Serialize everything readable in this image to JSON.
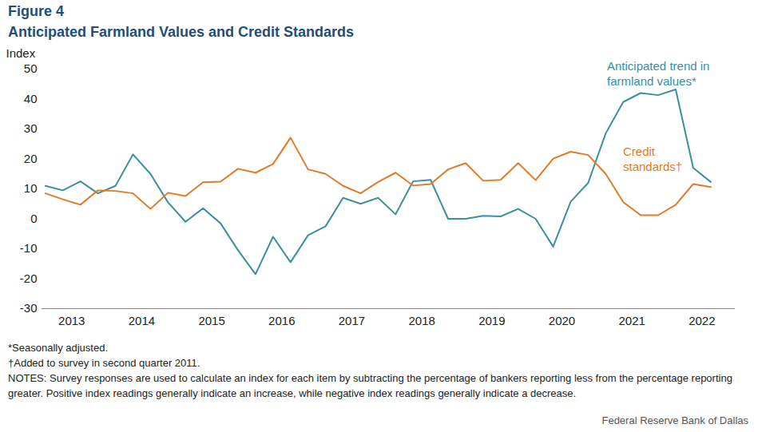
{
  "chart_data": {
    "type": "line",
    "title": "Figure 4",
    "subtitle": "Anticipated Farmland Values and Credit Standards",
    "y_label": "Index",
    "x": [
      2013,
      2013.25,
      2013.5,
      2013.75,
      2014,
      2014.25,
      2014.5,
      2014.75,
      2015,
      2015.25,
      2015.5,
      2015.75,
      2016,
      2016.25,
      2016.5,
      2016.75,
      2017,
      2017.25,
      2017.5,
      2017.75,
      2018,
      2018.25,
      2018.5,
      2018.75,
      2019,
      2019.25,
      2019.5,
      2019.75,
      2020,
      2020.25,
      2020.5,
      2020.75,
      2021,
      2021.25,
      2021.5,
      2021.75,
      2022,
      2022.25,
      2022.5
    ],
    "series": [
      {
        "name": "Anticipated trend in farmland values*",
        "color": "#3a8fa0",
        "values": [
          11,
          9.5,
          12.5,
          8.5,
          11,
          21.5,
          15,
          5.5,
          -1,
          3.5,
          -1.5,
          -10.5,
          -18.5,
          -6,
          -14.5,
          -5.5,
          -2.5,
          7,
          5,
          7,
          1.5,
          12.5,
          13,
          0,
          0,
          1,
          0.8,
          3.3,
          0,
          -9.3,
          5.7,
          12,
          28.5,
          39,
          42,
          41.3,
          43.2,
          17,
          12.3
        ]
      },
      {
        "name": "Credit standards†",
        "color": "#e07b28",
        "values": [
          8.5,
          6.5,
          4.7,
          9.5,
          9.3,
          8.5,
          3.3,
          8.7,
          7.6,
          12.2,
          12.4,
          16.7,
          15.4,
          18.3,
          27.1,
          16.5,
          15,
          11,
          8.5,
          12.3,
          15.4,
          11.1,
          11.6,
          16.5,
          18.6,
          12.7,
          13,
          18.6,
          12.9,
          20.1,
          22.4,
          21.3,
          15,
          5.6,
          1.2,
          1.2,
          4.7,
          11.6,
          10.6
        ]
      }
    ],
    "xlim": [
      2012.95,
      2022.85
    ],
    "xticks": [
      {
        "value": 2013.375,
        "label": "2013"
      },
      {
        "value": 2014.375,
        "label": "2014"
      },
      {
        "value": 2015.375,
        "label": "2015"
      },
      {
        "value": 2016.375,
        "label": "2016"
      },
      {
        "value": 2017.375,
        "label": "2017"
      },
      {
        "value": 2018.375,
        "label": "2018"
      },
      {
        "value": 2019.375,
        "label": "2019"
      },
      {
        "value": 2020.375,
        "label": "2020"
      },
      {
        "value": 2021.375,
        "label": "2021"
      },
      {
        "value": 2022.375,
        "label": "2022"
      }
    ],
    "ylim": [
      -30,
      50
    ],
    "yticks": [
      -30,
      -20,
      -10,
      0,
      10,
      20,
      30,
      40,
      50
    ],
    "grid": false,
    "notes": [
      "*Seasonally adjusted.",
      "†Added to survey in second quarter 2011.",
      "NOTES: Survey responses are used to calculate an index for each item by subtracting the percentage of bankers reporting less from the percentage reporting greater. Positive index readings generally indicate an increase, while negative index readings generally indicate a decrease."
    ],
    "source": "Federal Reserve Bank of Dallas"
  }
}
